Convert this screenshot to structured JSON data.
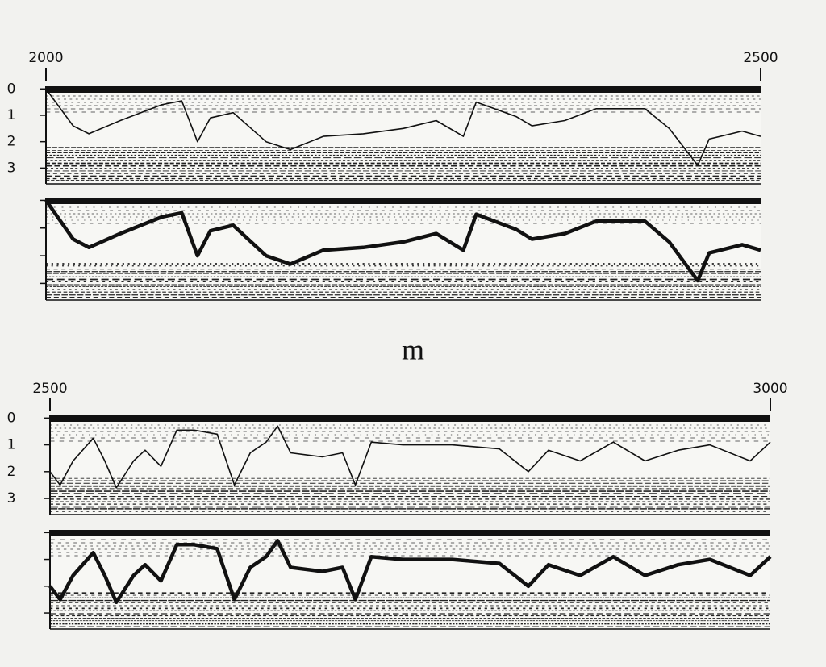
{
  "chart_data": [
    {
      "type": "line",
      "xlabel": "m",
      "xlim": [
        2000,
        2500
      ],
      "xticks": [
        2000,
        2500
      ],
      "ylim": [
        -0.1,
        3.6
      ],
      "yticks": [
        0,
        1,
        2,
        3
      ],
      "y_inverted": true,
      "color": "#111111",
      "x": [
        2000,
        2019,
        2030,
        2052,
        2081,
        2095,
        2106,
        2115,
        2131,
        2154,
        2171,
        2194,
        2222,
        2250,
        2273,
        2292,
        2301,
        2329,
        2340,
        2363,
        2385,
        2419,
        2436,
        2456,
        2464,
        2487,
        2500
      ],
      "values": [
        0,
        1.4,
        1.7,
        1.2,
        0.6,
        0.45,
        2.0,
        1.1,
        0.9,
        2.0,
        2.3,
        1.8,
        1.7,
        1.5,
        1.2,
        1.8,
        0.5,
        1.05,
        1.4,
        1.2,
        0.75,
        0.75,
        1.5,
        2.9,
        1.9,
        1.6,
        1.8
      ]
    },
    {
      "type": "line",
      "xlim": [
        2500,
        3000
      ],
      "xticks": [
        2500,
        3000
      ],
      "ylim": [
        -0.1,
        3.6
      ],
      "yticks": [
        0,
        1,
        2,
        3
      ],
      "y_inverted": true,
      "color": "#111111",
      "x": [
        2500,
        2507,
        2516,
        2530,
        2538,
        2546,
        2558,
        2566,
        2577,
        2588,
        2600,
        2616,
        2628,
        2639,
        2650,
        2658,
        2667,
        2689,
        2703,
        2712,
        2723,
        2745,
        2779,
        2812,
        2832,
        2846,
        2868,
        2891,
        2913,
        2936,
        2958,
        2986,
        3000
      ],
      "values": [
        2.0,
        2.5,
        1.6,
        0.75,
        1.6,
        2.6,
        1.6,
        1.2,
        1.8,
        0.45,
        0.45,
        0.6,
        2.5,
        1.3,
        0.9,
        0.3,
        1.3,
        1.45,
        1.3,
        2.5,
        0.9,
        1.0,
        1.0,
        1.15,
        2.0,
        1.2,
        1.6,
        0.9,
        1.6,
        1.2,
        1.0,
        1.6,
        0.9
      ]
    }
  ]
}
